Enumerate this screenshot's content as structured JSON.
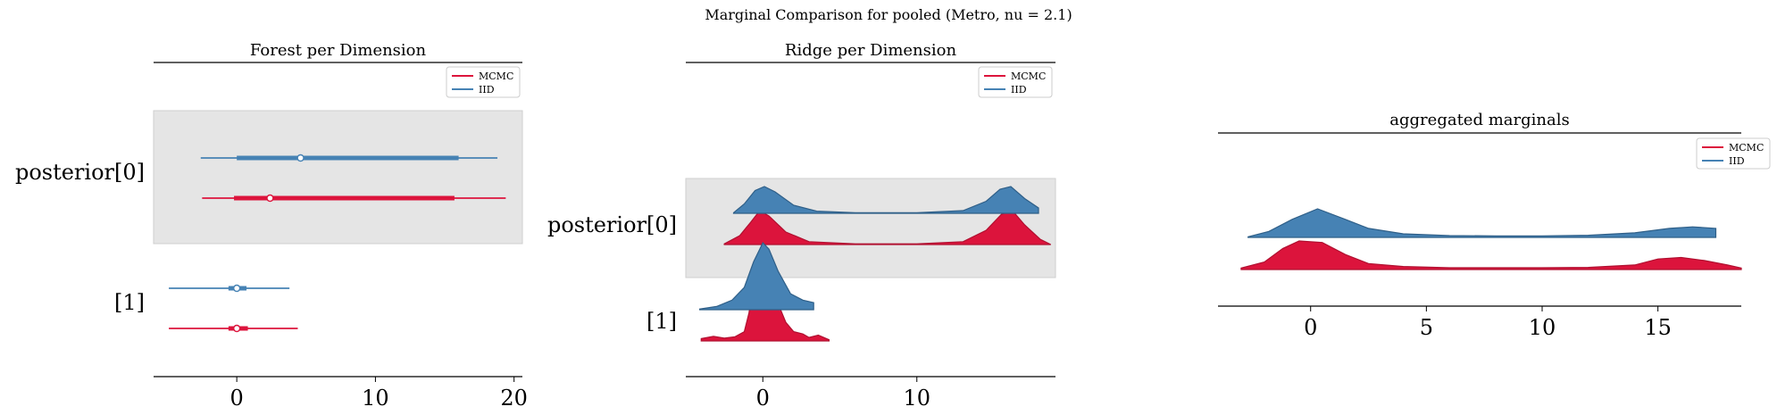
{
  "figure": {
    "suptitle": "Marginal Comparison for pooled (Metro, nu = 2.1)"
  },
  "colors": {
    "mcmc": "#dc143c",
    "iid": "#4682b4",
    "band": "#e5e5e5"
  },
  "chart_data": [
    {
      "type": "forest",
      "title": "Forest per Dimension",
      "labels": [
        "posterior[0]",
        "[1]"
      ],
      "xticks": [
        0,
        10,
        20
      ],
      "xlim": [
        -6,
        20.6
      ],
      "legend": {
        "position": "top-right",
        "entries": [
          "MCMC",
          "IID"
        ]
      },
      "series": [
        {
          "name": "MCMC",
          "rows": [
            {
              "min": -2.5,
              "q25": -0.2,
              "median": 2.4,
              "q75": 15.7,
              "max": 19.4
            },
            {
              "min": -4.9,
              "q25": -0.6,
              "median": 0.0,
              "q75": 0.8,
              "max": 4.4
            }
          ]
        },
        {
          "name": "IID",
          "rows": [
            {
              "min": -2.6,
              "q25": 0.0,
              "median": 4.6,
              "q75": 16.0,
              "max": 18.8
            },
            {
              "min": -4.9,
              "q25": -0.6,
              "median": 0.0,
              "q75": 0.7,
              "max": 3.8
            }
          ]
        }
      ]
    },
    {
      "type": "ridge",
      "title": "Ridge per Dimension",
      "labels": [
        "posterior[0]",
        "[1]"
      ],
      "xticks": [
        0,
        10
      ],
      "xlim": [
        -5,
        19
      ],
      "legend": {
        "position": "top-right",
        "entries": [
          "MCMC",
          "IID"
        ]
      },
      "series": [
        {
          "name": "MCMC",
          "rows": [
            {
              "range": [
                -2.5,
                18.7
              ],
              "density": [
                [
                  -2.5,
                  0.02
                ],
                [
                  -1.5,
                  0.25
                ],
                [
                  -0.8,
                  0.62
                ],
                [
                  -0.2,
                  0.95
                ],
                [
                  0.4,
                  0.8
                ],
                [
                  1.5,
                  0.35
                ],
                [
                  3,
                  0.08
                ],
                [
                  6,
                  0.02
                ],
                [
                  10,
                  0.02
                ],
                [
                  13,
                  0.08
                ],
                [
                  14.5,
                  0.4
                ],
                [
                  15.5,
                  0.85
                ],
                [
                  16.2,
                  0.95
                ],
                [
                  17,
                  0.55
                ],
                [
                  18,
                  0.15
                ],
                [
                  18.7,
                  0.0
                ]
              ]
            },
            {
              "range": [
                -4.0,
                4.3
              ],
              "density": [
                [
                  -4.0,
                  0.1
                ],
                [
                  -3.2,
                  0.2
                ],
                [
                  -2.5,
                  0.12
                ],
                [
                  -1.8,
                  0.18
                ],
                [
                  -1.2,
                  0.4
                ],
                [
                  -0.9,
                  1.2
                ],
                [
                  -0.6,
                  2.4
                ],
                [
                  -0.4,
                  2.7
                ],
                [
                  -0.2,
                  2.0
                ],
                [
                  0.0,
                  2.2
                ],
                [
                  0.2,
                  1.9
                ],
                [
                  0.5,
                  2.2
                ],
                [
                  0.8,
                  1.4
                ],
                [
                  1.0,
                  1.6
                ],
                [
                  1.5,
                  0.8
                ],
                [
                  2.0,
                  0.4
                ],
                [
                  2.6,
                  0.3
                ],
                [
                  3.0,
                  0.15
                ],
                [
                  3.6,
                  0.25
                ],
                [
                  4.3,
                  0.05
                ]
              ]
            }
          ]
        },
        {
          "name": "IID",
          "rows": [
            {
              "range": [
                -1.9,
                17.9
              ],
              "density": [
                [
                  -1.9,
                  0.02
                ],
                [
                  -1.2,
                  0.35
                ],
                [
                  -0.5,
                  0.85
                ],
                [
                  0.1,
                  1.0
                ],
                [
                  0.8,
                  0.8
                ],
                [
                  2,
                  0.3
                ],
                [
                  3.5,
                  0.08
                ],
                [
                  6,
                  0.02
                ],
                [
                  10,
                  0.02
                ],
                [
                  13,
                  0.1
                ],
                [
                  14.5,
                  0.45
                ],
                [
                  15.4,
                  0.9
                ],
                [
                  16.1,
                  1.0
                ],
                [
                  17,
                  0.55
                ],
                [
                  17.9,
                  0.2
                ]
              ]
            },
            {
              "range": [
                -4.1,
                3.3
              ],
              "density": [
                [
                  -4.1,
                  0.02
                ],
                [
                  -3,
                  0.1
                ],
                [
                  -2,
                  0.3
                ],
                [
                  -1.2,
                  0.7
                ],
                [
                  -0.6,
                  1.5
                ],
                [
                  0.0,
                  2.1
                ],
                [
                  0.4,
                  1.9
                ],
                [
                  1.0,
                  1.2
                ],
                [
                  1.8,
                  0.5
                ],
                [
                  2.6,
                  0.3
                ],
                [
                  3.3,
                  0.22
                ]
              ]
            }
          ]
        }
      ]
    },
    {
      "type": "ridge",
      "title": "aggregated marginals",
      "labels": [],
      "xticks": [
        0,
        5,
        10,
        15
      ],
      "xlim": [
        -4,
        18.6
      ],
      "legend": {
        "position": "top-right",
        "entries": [
          "MCMC",
          "IID"
        ]
      },
      "series": [
        {
          "name": "MCMC",
          "density": [
            [
              -3.0,
              0.05
            ],
            [
              -2.0,
              0.25
            ],
            [
              -1.2,
              0.7
            ],
            [
              -0.5,
              0.95
            ],
            [
              0.5,
              0.9
            ],
            [
              1.5,
              0.5
            ],
            [
              2.5,
              0.2
            ],
            [
              4,
              0.1
            ],
            [
              6,
              0.06
            ],
            [
              8,
              0.06
            ],
            [
              10,
              0.06
            ],
            [
              12,
              0.07
            ],
            [
              14,
              0.15
            ],
            [
              15,
              0.35
            ],
            [
              16,
              0.4
            ],
            [
              17,
              0.3
            ],
            [
              18,
              0.15
            ],
            [
              18.6,
              0.05
            ]
          ]
        },
        {
          "name": "IID",
          "density": [
            [
              -2.7,
              0.02
            ],
            [
              -1.8,
              0.2
            ],
            [
              -0.8,
              0.6
            ],
            [
              0.3,
              0.95
            ],
            [
              1.5,
              0.6
            ],
            [
              2.5,
              0.3
            ],
            [
              4,
              0.12
            ],
            [
              6,
              0.06
            ],
            [
              8,
              0.05
            ],
            [
              10,
              0.05
            ],
            [
              12,
              0.07
            ],
            [
              14,
              0.15
            ],
            [
              15.5,
              0.3
            ],
            [
              16.5,
              0.35
            ],
            [
              17.5,
              0.3
            ]
          ]
        }
      ]
    }
  ]
}
